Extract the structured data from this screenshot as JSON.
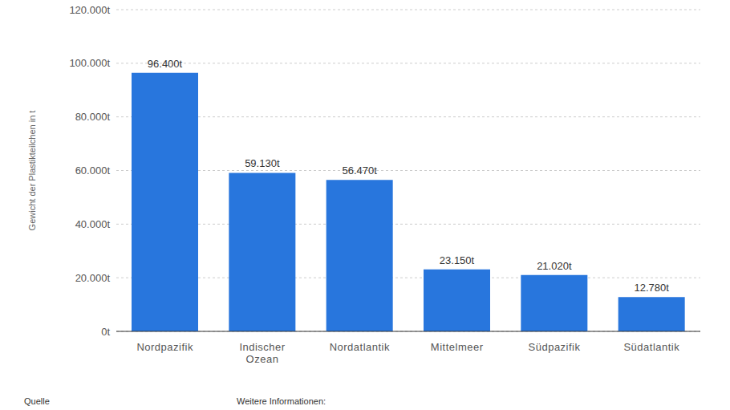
{
  "chart_data": {
    "type": "bar",
    "y_label": "Gewicht der Plastikteilchen in t",
    "categories": [
      "Nordpazifik",
      "Indischer Ozean",
      "Nordatlantik",
      "Mittelmeer",
      "Südpazifik",
      "Südatlantik"
    ],
    "values": [
      96400,
      59130,
      56470,
      23150,
      21020,
      12780
    ],
    "value_labels": [
      "96.400t",
      "59.130t",
      "56.470t",
      "23.150t",
      "21.020t",
      "12.780t"
    ],
    "data_labels": true,
    "color": "#2876dd",
    "ylim": [
      0,
      120000
    ],
    "yticks": [
      {
        "value": 0,
        "label": "0t"
      },
      {
        "value": 20000,
        "label": "20.000t"
      },
      {
        "value": 40000,
        "label": "40.000t"
      },
      {
        "value": 60000,
        "label": "60.000t"
      },
      {
        "value": 80000,
        "label": "80.000t"
      },
      {
        "value": 100000,
        "label": "100.000t"
      },
      {
        "value": 120000,
        "label": "120.000t"
      }
    ],
    "grid": true,
    "annotations": [
      "Quelle",
      "Weitere Informationen:"
    ]
  }
}
